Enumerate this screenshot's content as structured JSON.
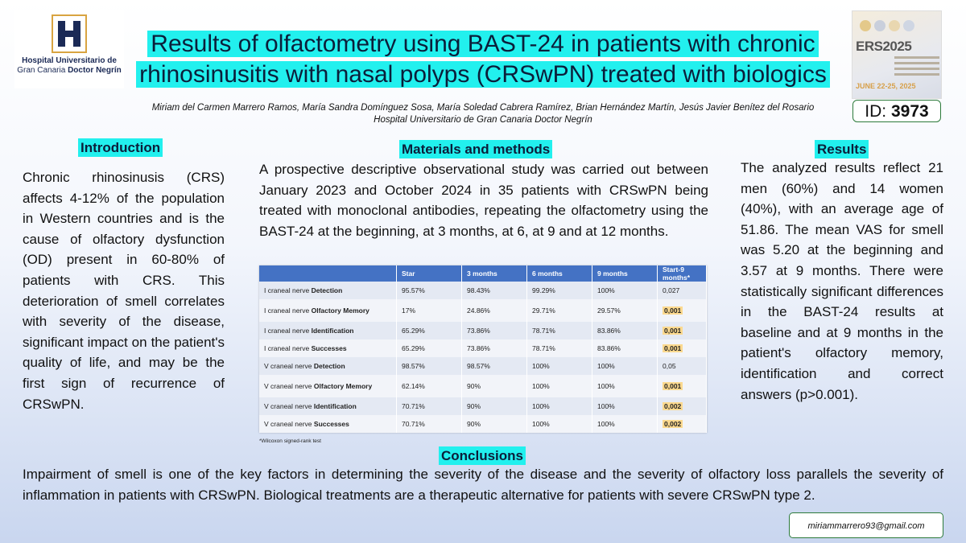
{
  "logo_left": {
    "line1": "Hospital Universitario de",
    "line2_a": "Gran Canaria ",
    "line2_b": "Doctor Negrín",
    "color": "#1b2a56",
    "accent": "#d9a441"
  },
  "title": "Results of olfactometry using BAST-24 in patients with chronic rhinosinusitis with nasal polyps (CRSwPN) treated with biologics",
  "authors": "Miriam del Carmen Marrero Ramos, María Sandra Domínguez Sosa, María Soledad Cabrera Ramírez, Brian Hernández Martín, Jesús Javier Benítez del Rosario",
  "affiliation": "Hospital Universitario de Gran Canaria Doctor Negrín",
  "logo_right": {
    "name": "ERS2025",
    "dates": "JUNE 22-25, 2025"
  },
  "id_label": "ID: ",
  "id_value": "3973",
  "introduction": {
    "heading": "Introduction",
    "text": "Chronic rhinosinusis (CRS) affects 4-12% of the population in Western countries and is the cause of olfactory dysfunction (OD) present in 60-80% of patients with CRS. This deterioration of smell correlates with severity of the disease, significant impact on the patient's quality of life, and may be the first sign of recurrence of CRSwPN."
  },
  "methods": {
    "heading": "Materials and methods",
    "text": "A prospective descriptive observational study was carried out between January 2023 and October 2024 in 35 patients with CRSwPN being treated with monoclonal antibodies, repeating the olfactometry using the BAST-24 at the beginning, at 3 months, at 6, at 9 and at 12 months."
  },
  "table": {
    "headers": [
      "",
      "Star",
      "3 months",
      "6 months",
      "9 months",
      "Start-9 months*"
    ],
    "rows": [
      {
        "prefix": "I craneal nerve ",
        "bold": "Detection",
        "cells": [
          "95.57%",
          "98.43%",
          "99.29%",
          "100%",
          "0,027"
        ],
        "hl": false
      },
      {
        "prefix": "I craneal nerve ",
        "bold": "Olfactory Memory",
        "cells": [
          "17%",
          "24.86%",
          "29.71%",
          "29.57%",
          "0,001"
        ],
        "hl": true
      },
      {
        "prefix": "I craneal nerve ",
        "bold": "Identification",
        "cells": [
          "65.29%",
          "73.86%",
          "78.71%",
          "83.86%",
          "0,001"
        ],
        "hl": true
      },
      {
        "prefix": "I craneal nerve ",
        "bold": "Successes",
        "cells": [
          "65.29%",
          "73.86%",
          "78.71%",
          "83.86%",
          "0,001"
        ],
        "hl": true
      },
      {
        "prefix": "V craneal nerve ",
        "bold": "Detection",
        "cells": [
          "98.57%",
          "98.57%",
          "100%",
          "100%",
          "0,05"
        ],
        "hl": false
      },
      {
        "prefix": "V craneal nerve ",
        "bold": "Olfactory Memory",
        "cells": [
          "62.14%",
          "90%",
          "100%",
          "100%",
          "0,001"
        ],
        "hl": true
      },
      {
        "prefix": "V craneal nerve ",
        "bold": "Identification",
        "cells": [
          "70.71%",
          "90%",
          "100%",
          "100%",
          "0,002"
        ],
        "hl": true
      },
      {
        "prefix": "V craneal nerve ",
        "bold": "Successes",
        "cells": [
          "70.71%",
          "90%",
          "100%",
          "100%",
          "0,002"
        ],
        "hl": true
      }
    ],
    "footnote": "*Wilcoxon signed-rank test"
  },
  "results": {
    "heading": "Results",
    "text": "The analyzed results reflect 21 men (60%) and 14 women (40%), with an average age of 51.86. The mean VAS for smell was 5.20 at the beginning and 3.57 at 9 months. There were statistically significant differences in the BAST-24 results at baseline and at 9 months in the patient's olfactory memory, identification and correct answers (p>0.001)."
  },
  "conclusions": {
    "heading": "Conclusions",
    "text": "Impairment of smell is one of the key factors in determining the severity of the disease and the severity of olfactory loss parallels the severity of inflammation in patients with CRSwPN. Biological treatments are a therapeutic alternative for patients with severe CRSwPN type 2."
  },
  "email": "miriammarrero93@gmail.com",
  "colors": {
    "highlight": "#22f0ee",
    "table_header": "#4472c4",
    "sig_highlight": "#fbd98f",
    "border_green": "#2c7a3a"
  }
}
